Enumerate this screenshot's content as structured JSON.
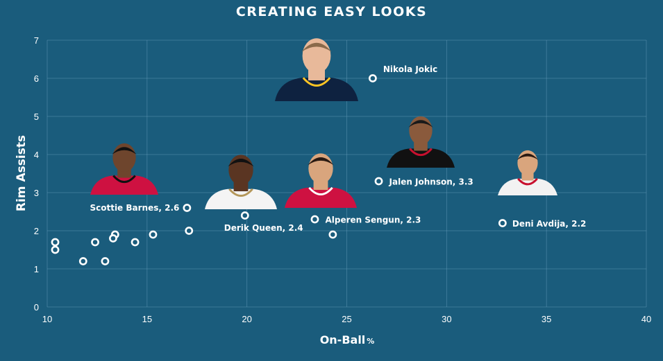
{
  "chart_data": {
    "type": "scatter",
    "title": "CREATING EASY LOOKS",
    "xlabel": "On-Ball",
    "xlabel_suffix": "%",
    "ylabel": "Rim Assists",
    "xlim": [
      10,
      40
    ],
    "ylim": [
      0,
      7
    ],
    "xticks": [
      10,
      15,
      20,
      25,
      30,
      35,
      40
    ],
    "yticks": [
      0,
      1,
      2,
      3,
      4,
      5,
      6,
      7
    ],
    "grid": true,
    "points": [
      {
        "x": 26.3,
        "y": 6.0,
        "label": "Nikola Jokic",
        "photo": "jokic-photo"
      },
      {
        "x": 26.6,
        "y": 3.3,
        "label": "Jalen Johnson, 3.3",
        "photo": "johnson-photo"
      },
      {
        "x": 32.8,
        "y": 2.2,
        "label": "Deni Avdija, 2.2",
        "photo": "avdija-photo"
      },
      {
        "x": 17.0,
        "y": 2.6,
        "label": "Scottie Barnes, 2.6",
        "photo": "barnes-photo"
      },
      {
        "x": 19.9,
        "y": 2.4,
        "label": "Derik Queen, 2.4",
        "photo": "queen-photo"
      },
      {
        "x": 23.4,
        "y": 2.3,
        "label": "Alperen Sengun, 2.3",
        "photo": "sengun-photo"
      },
      {
        "x": 24.3,
        "y": 1.9
      },
      {
        "x": 17.1,
        "y": 2.0
      },
      {
        "x": 15.3,
        "y": 1.9
      },
      {
        "x": 14.4,
        "y": 1.7
      },
      {
        "x": 13.4,
        "y": 1.9
      },
      {
        "x": 13.3,
        "y": 1.8
      },
      {
        "x": 12.4,
        "y": 1.7
      },
      {
        "x": 12.9,
        "y": 1.2
      },
      {
        "x": 11.8,
        "y": 1.2
      },
      {
        "x": 10.4,
        "y": 1.7
      },
      {
        "x": 10.4,
        "y": 1.5
      }
    ]
  }
}
